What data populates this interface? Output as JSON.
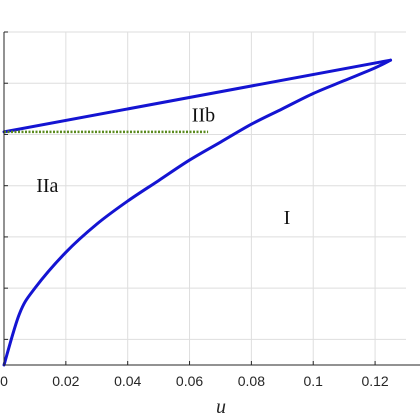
{
  "chart_data": {
    "type": "line",
    "xlabel": "u",
    "xlim": [
      0,
      0.13
    ],
    "ylim": [
      0,
      6.5
    ],
    "x_ticks": [
      0,
      0.02,
      0.04,
      0.06,
      0.08,
      0.1,
      0.12
    ],
    "x_tick_labels": [
      "0",
      "0.02",
      "0.04",
      "0.06",
      "0.08",
      "0.1",
      "0.12"
    ],
    "y_ticks": [
      0.5,
      1.5,
      2.5,
      3.5,
      4.5,
      5.5,
      6.5
    ],
    "grid": true,
    "series": [
      {
        "style": "solid",
        "color": "#1414d2",
        "x": [
          0,
          0.125
        ],
        "y": [
          4.55,
          5.95
        ]
      },
      {
        "style": "solid",
        "color": "#1414d2",
        "x": [
          0,
          0.005,
          0.01,
          0.02,
          0.03,
          0.04,
          0.05,
          0.06,
          0.07,
          0.08,
          0.09,
          0.1,
          0.11,
          0.12,
          0.125
        ],
        "y": [
          0.0,
          1.0,
          1.5,
          2.2,
          2.75,
          3.2,
          3.6,
          4.0,
          4.35,
          4.7,
          5.0,
          5.3,
          5.55,
          5.8,
          5.95
        ]
      },
      {
        "style": "dotted",
        "color": "#5a8a1e",
        "x": [
          0,
          0.066
        ],
        "y": [
          4.55,
          4.55
        ]
      }
    ],
    "annotations": [
      {
        "text": "IIa",
        "x": 0.014,
        "y": 3.38
      },
      {
        "text": "IIb",
        "x": 0.0645,
        "y": 4.75
      },
      {
        "text": "I",
        "x": 0.0915,
        "y": 2.75
      }
    ]
  }
}
